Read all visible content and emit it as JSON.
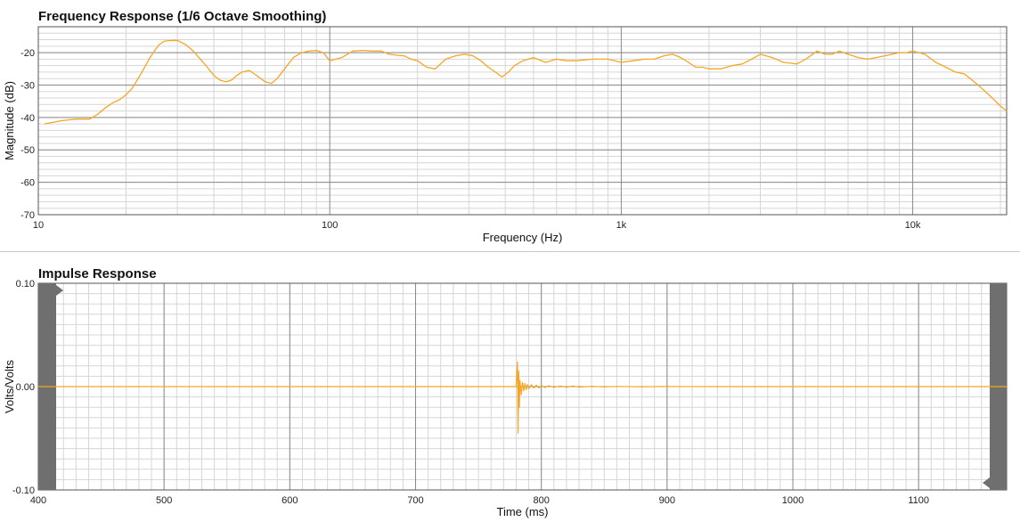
{
  "chart_data": [
    {
      "type": "line",
      "title": "Frequency Response (1/6 Octave Smoothing)",
      "xlabel": "Frequency (Hz)",
      "ylabel": "Magnitude (dB)",
      "xscale": "log",
      "xlim": [
        10,
        21000
      ],
      "ylim": [
        -70,
        -12
      ],
      "xticks": [
        10,
        100,
        1000,
        10000
      ],
      "xtick_labels": [
        "10",
        "100",
        "1k",
        "10k"
      ],
      "yticks": [
        -20,
        -30,
        -40,
        -50,
        -60,
        -70
      ],
      "ytick_labels": [
        "-20",
        "-30",
        "-40",
        "-50",
        "-60",
        "-70"
      ],
      "grid": true,
      "color": "#f5a623",
      "series": [
        {
          "x": [
            10.5,
            12,
            13.5,
            15,
            16,
            17,
            18,
            19,
            20,
            21,
            22,
            23,
            24,
            25,
            26,
            27,
            28,
            30,
            32,
            34,
            36,
            38,
            40,
            42,
            44,
            46,
            48,
            50,
            53,
            56,
            60,
            63,
            66,
            70,
            75,
            80,
            85,
            90,
            95,
            100,
            105,
            110,
            120,
            130,
            140,
            150,
            160,
            170,
            180,
            190,
            200,
            215,
            230,
            250,
            270,
            290,
            310,
            330,
            350,
            370,
            390,
            410,
            430,
            460,
            500,
            550,
            600,
            650,
            700,
            800,
            900,
            1000,
            1100,
            1200,
            1300,
            1400,
            1500,
            1600,
            1700,
            1800,
            1900,
            2000,
            2200,
            2400,
            2600,
            2800,
            3000,
            3300,
            3600,
            4000,
            4300,
            4700,
            5000,
            5300,
            5600,
            6000,
            6500,
            7000,
            7500,
            8000,
            8500,
            9000,
            9500,
            10000,
            11000,
            12000,
            13000,
            14000,
            15000,
            16000,
            17000,
            18000,
            19000,
            20000,
            21000
          ],
          "y": [
            -42,
            -41,
            -40.5,
            -40.5,
            -39,
            -37,
            -35.5,
            -34.5,
            -33,
            -31,
            -28,
            -25,
            -22,
            -19.5,
            -17.5,
            -16.5,
            -16.3,
            -16.2,
            -17.5,
            -19.5,
            -22,
            -24.5,
            -27,
            -28.5,
            -29,
            -28.5,
            -27,
            -26,
            -25.5,
            -27,
            -29,
            -29.5,
            -28,
            -25,
            -21.5,
            -20,
            -19.5,
            -19.3,
            -20,
            -22.5,
            -22,
            -21.5,
            -19.5,
            -19.3,
            -19.5,
            -19.5,
            -20.5,
            -20.8,
            -21,
            -22,
            -22.5,
            -24.5,
            -25,
            -22,
            -21,
            -20.5,
            -21,
            -22.5,
            -24.5,
            -26,
            -27.5,
            -26,
            -24,
            -22.5,
            -21.5,
            -23,
            -22,
            -22.5,
            -22.5,
            -22,
            -22,
            -23,
            -22.5,
            -22,
            -22,
            -21,
            -20.5,
            -21.5,
            -23,
            -24.5,
            -24.5,
            -25,
            -25,
            -24,
            -23.5,
            -22,
            -20.5,
            -21.5,
            -23,
            -23.5,
            -22,
            -19.5,
            -20.5,
            -20.5,
            -19.5,
            -20.5,
            -21.5,
            -22,
            -21.5,
            -21,
            -20.5,
            -20,
            -20,
            -19.5,
            -20.5,
            -23,
            -24.5,
            -26,
            -26.5,
            -28.5,
            -30.5,
            -32.5,
            -34.5,
            -36.5,
            -38
          ]
        }
      ]
    },
    {
      "type": "line",
      "title": "Impulse Response",
      "xlabel": "Time (ms)",
      "ylabel": "Volts/Volts",
      "xlim": [
        400,
        1170
      ],
      "ylim": [
        -0.1,
        0.1
      ],
      "xticks": [
        400,
        500,
        600,
        700,
        800,
        900,
        1000,
        1100
      ],
      "xtick_labels": [
        "400",
        "500",
        "600",
        "700",
        "800",
        "900",
        "1000",
        "1100"
      ],
      "yticks": [
        0.1,
        0.0,
        -0.1
      ],
      "ytick_labels": [
        "0.10",
        "0.00",
        "-0.10"
      ],
      "grid": true,
      "color": "#f5a623",
      "series": [
        {
          "x": [
            400,
            780,
            781,
            781.5,
            782,
            782.5,
            783,
            784,
            785,
            786,
            787,
            788,
            789,
            790,
            792,
            794,
            796,
            798,
            800,
            803,
            806,
            810,
            815,
            820,
            825,
            830,
            840,
            850,
            860,
            880,
            900,
            950,
            1000,
            1170
          ],
          "y": [
            0,
            0,
            0.024,
            -0.045,
            0.015,
            -0.02,
            0.006,
            -0.008,
            0.004,
            -0.004,
            0.003,
            -0.003,
            0.002,
            -0.002,
            0.0018,
            -0.0015,
            0.0014,
            -0.0012,
            0.001,
            -0.0009,
            0.0008,
            -0.0007,
            0.0006,
            -0.0005,
            0.0005,
            -0.0004,
            0.0003,
            -0.0003,
            0.0002,
            -0.0002,
            0.0001,
            0,
            0,
            0
          ]
        }
      ]
    }
  ]
}
